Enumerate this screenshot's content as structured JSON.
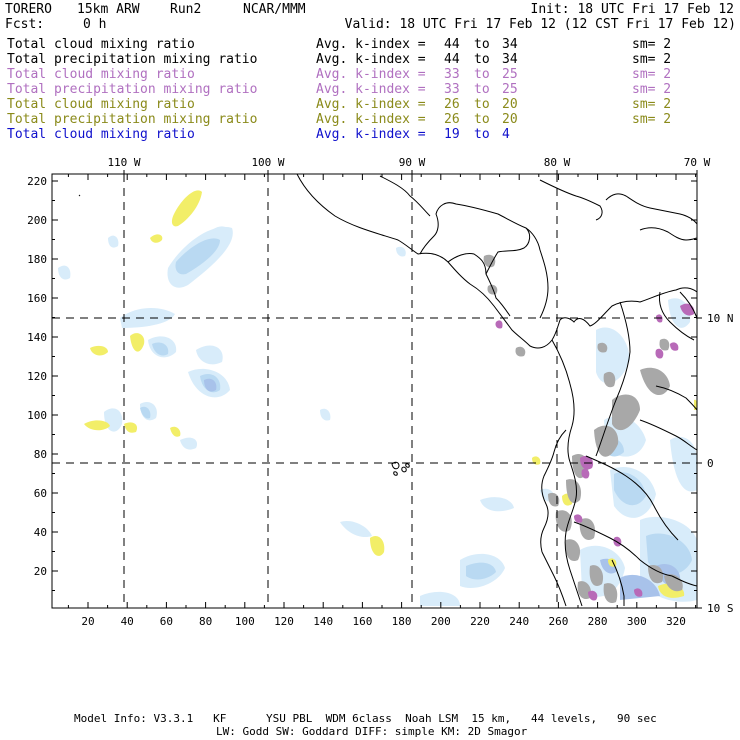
{
  "header": {
    "model": "TORERO",
    "resolution": "15km ARW",
    "run": "Run2",
    "org": "NCAR/MMM",
    "init": "Init: 18 UTC Fri 17 Feb 12",
    "fcst_label": "Fcst:",
    "fcst_value": "0 h",
    "valid": "Valid: 18 UTC Fri 17 Feb 12 (12 CST Fri 17 Feb 12)"
  },
  "colors": {
    "black": "#000000",
    "violet": "#b070c0",
    "olive": "#8a8a1a",
    "blue": "#1010cc",
    "cloud_light": "#d8ecfa",
    "cloud_mid": "#b9d9f2",
    "cloud_blue": "#a8c2ea",
    "precip_yellow": "#f2ee68",
    "gray": "#a8a8a8",
    "purple": "#b86ab8"
  },
  "legend": [
    {
      "field": "Total cloud mixing ratio",
      "avg": "Avg. k-index =",
      "k1": "44",
      "to": "to",
      "k2": "34",
      "sm": "sm= 2",
      "color": "#000000"
    },
    {
      "field": "Total precipitation mixing ratio",
      "avg": "Avg. k-index =",
      "k1": "44",
      "to": "to",
      "k2": "34",
      "sm": "sm= 2",
      "color": "#000000"
    },
    {
      "field": "Total cloud mixing ratio",
      "avg": "Avg. k-index =",
      "k1": "33",
      "to": "to",
      "k2": "25",
      "sm": "sm= 2",
      "color": "#b070c0"
    },
    {
      "field": "Total precipitation mixing ratio",
      "avg": "Avg. k-index =",
      "k1": "33",
      "to": "to",
      "k2": "25",
      "sm": "sm= 2",
      "color": "#b070c0"
    },
    {
      "field": "Total cloud mixing ratio",
      "avg": "Avg. k-index =",
      "k1": "26",
      "to": "to",
      "k2": "20",
      "sm": "sm= 2",
      "color": "#8a8a1a"
    },
    {
      "field": "Total precipitation mixing ratio",
      "avg": "Avg. k-index =",
      "k1": "26",
      "to": "to",
      "k2": "20",
      "sm": "sm= 2",
      "color": "#8a8a1a"
    },
    {
      "field": "Total cloud mixing ratio",
      "avg": "Avg. k-index =",
      "k1": "19",
      "to": "to",
      "k2": "4",
      "sm": "",
      "color": "#1010cc"
    }
  ],
  "axes": {
    "top_lon_labels": [
      "110 W",
      "100 W",
      "90 W",
      "80 W",
      "70 W"
    ],
    "right_lat_labels": [
      "10 N",
      "0",
      "10 S"
    ],
    "left_y_ticks": [
      "220",
      "200",
      "180",
      "160",
      "140",
      "120",
      "100",
      "80",
      "60",
      "40",
      "20"
    ],
    "bottom_x_ticks": [
      "20",
      "40",
      "60",
      "80",
      "100",
      "120",
      "140",
      "160",
      "180",
      "200",
      "220",
      "240",
      "260",
      "280",
      "300",
      "320"
    ]
  },
  "footer": {
    "line1": "Model Info: V3.3.1   KF      YSU PBL  WDM 6class  Noah LSM  15 km,   44 levels,   90 sec",
    "line2": "LW: Godd SW: Goddard DIFF: simple KM: 2D Smagor"
  }
}
